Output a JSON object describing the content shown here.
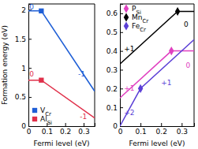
{
  "chart_data": [
    {
      "type": "line",
      "xlabel": "Fermi level (eV)",
      "ylabel": "Formation energy (eV)",
      "xlim": [
        0,
        0.36
      ],
      "xticks": [
        0,
        0.1,
        0.2,
        0.3
      ],
      "ylim": [
        0,
        2.1
      ],
      "yticks": [
        0,
        0.5,
        1,
        1.5,
        2
      ],
      "legend": "lower left",
      "series": [
        {
          "name": "VCr",
          "color": "#1f5fd6",
          "marker": "square",
          "x": [
            0,
            0.07,
            0.36
          ],
          "values": [
            1.98,
            1.98,
            0.6
          ]
        },
        {
          "name": "AlSi",
          "color": "#e0304a",
          "marker": "square",
          "x": [
            0,
            0.07,
            0.36
          ],
          "values": [
            0.79,
            0.79,
            0.14
          ]
        }
      ],
      "annotations": [
        {
          "text": "0",
          "x": 0.005,
          "y": 2.0,
          "color": "#1f5fd6"
        },
        {
          "text": "-1",
          "x": 0.27,
          "y": 0.85,
          "color": "#1f5fd6"
        },
        {
          "text": "0",
          "x": 0.005,
          "y": 0.85,
          "color": "#e0304a"
        },
        {
          "text": "-1",
          "x": 0.28,
          "y": 0.12,
          "color": "#e0304a"
        }
      ]
    },
    {
      "type": "line",
      "xlabel": "Fermi level (eV)",
      "xlim": [
        0,
        0.36
      ],
      "xticks": [
        0,
        0.1,
        0.2,
        0.3
      ],
      "ylim": [
        0,
        0.65
      ],
      "yticks": [
        0,
        0.1,
        0.2,
        0.3,
        0.4,
        0.5,
        0.6
      ],
      "legend": "upper left",
      "series": [
        {
          "name": "PSi",
          "color": "#e040c0",
          "marker": "diamond",
          "x": [
            0,
            0.25,
            0.36
          ],
          "values": [
            0.15,
            0.4,
            0.4
          ]
        },
        {
          "name": "MnCr",
          "color": "#000000",
          "marker": "diamond",
          "x": [
            0,
            0.28,
            0.36
          ],
          "values": [
            0.33,
            0.61,
            0.61
          ]
        },
        {
          "name": "FeCr",
          "color": "#5b3fd6",
          "marker": "diamond",
          "x": [
            0,
            0.1,
            0.36
          ],
          "values": [
            0.0,
            0.2,
            0.46
          ]
        }
      ],
      "annotations": [
        {
          "text": "+1",
          "x": 0.02,
          "y": 0.4,
          "color": "#000000"
        },
        {
          "text": "0",
          "x": 0.31,
          "y": 0.53,
          "color": "#000000"
        },
        {
          "text": "+1",
          "x": 0.02,
          "y": 0.19,
          "color": "#e040c0"
        },
        {
          "text": "0",
          "x": 0.32,
          "y": 0.31,
          "color": "#e040c0"
        },
        {
          "text": "+2",
          "x": 0.02,
          "y": 0.06,
          "color": "#5b3fd6"
        },
        {
          "text": "+1",
          "x": 0.2,
          "y": 0.22,
          "color": "#5b3fd6"
        }
      ]
    }
  ]
}
